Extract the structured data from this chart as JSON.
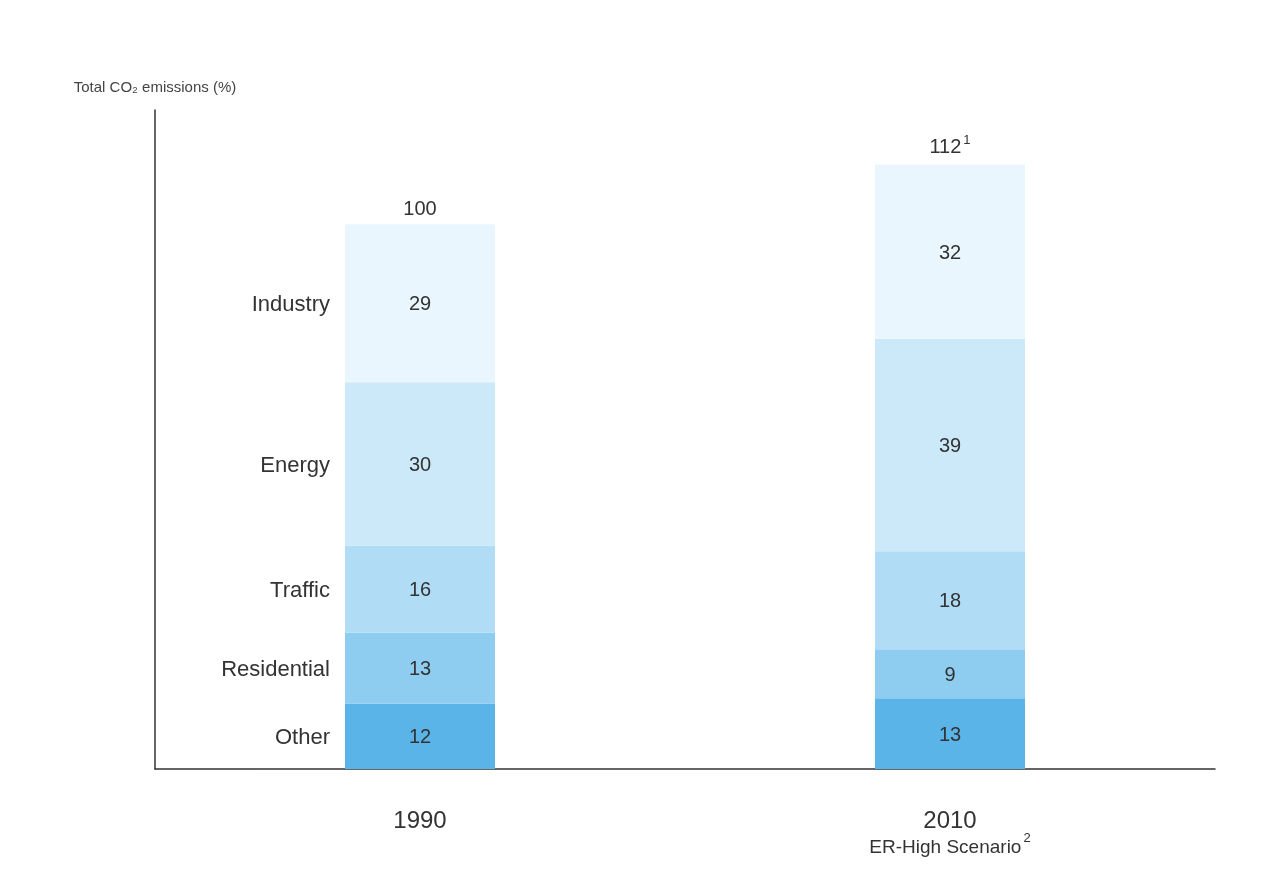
{
  "chart_data": {
    "type": "bar",
    "stacked": true,
    "ylabel": "Total CO₂ emissions (%)",
    "categories": [
      "1990",
      "2010 ER-High Scenario$^{2}$"
    ],
    "series": [
      {
        "name": "Other",
        "color": "#5ab4e8",
        "values": [
          12,
          13
        ]
      },
      {
        "name": "Residential",
        "color": "#8fcdf0",
        "values": [
          13,
          9
        ]
      },
      {
        "name": "Traffic",
        "color": "#b0ddf5",
        "values": [
          16,
          18
        ]
      },
      {
        "name": "Energy",
        "color": "#cbe9f9",
        "values": [
          30,
          39
        ]
      },
      {
        "name": "Industry",
        "color": "#e9f6fd",
        "values": [
          29,
          32
        ]
      }
    ],
    "data_labels": true,
    "totals": [
      "100",
      "112$^{1}$"
    ],
    "legend": false,
    "grid": false
  }
}
